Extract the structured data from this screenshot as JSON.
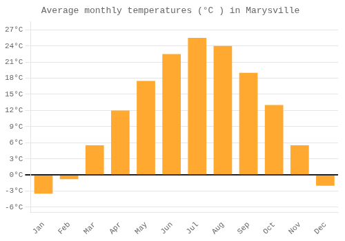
{
  "chart_data": {
    "type": "bar",
    "title": "Average monthly temperatures (°C ) in Marysville",
    "categories": [
      "Jan",
      "Feb",
      "Mar",
      "Apr",
      "May",
      "Jun",
      "Jul",
      "Aug",
      "Sep",
      "Oct",
      "Nov",
      "Dec"
    ],
    "values": [
      -3.5,
      -0.8,
      5.5,
      12.0,
      17.5,
      22.5,
      25.5,
      24.0,
      19.0,
      13.0,
      5.5,
      -2.0
    ],
    "color": "#FFA930",
    "ylim": [
      -7,
      28.5
    ],
    "yticks": [
      {
        "value": -6,
        "label": "-6°C"
      },
      {
        "value": -3,
        "label": "-3°C"
      },
      {
        "value": 0,
        "label": "0°C"
      },
      {
        "value": 3,
        "label": "3°C"
      },
      {
        "value": 6,
        "label": "6°C"
      },
      {
        "value": 9,
        "label": "9°C"
      },
      {
        "value": 12,
        "label": "12°C"
      },
      {
        "value": 15,
        "label": "15°C"
      },
      {
        "value": 18,
        "label": "18°C"
      },
      {
        "value": 21,
        "label": "21°C"
      },
      {
        "value": 24,
        "label": "24°C"
      },
      {
        "value": 27,
        "label": "27°C"
      }
    ],
    "grid": true
  }
}
